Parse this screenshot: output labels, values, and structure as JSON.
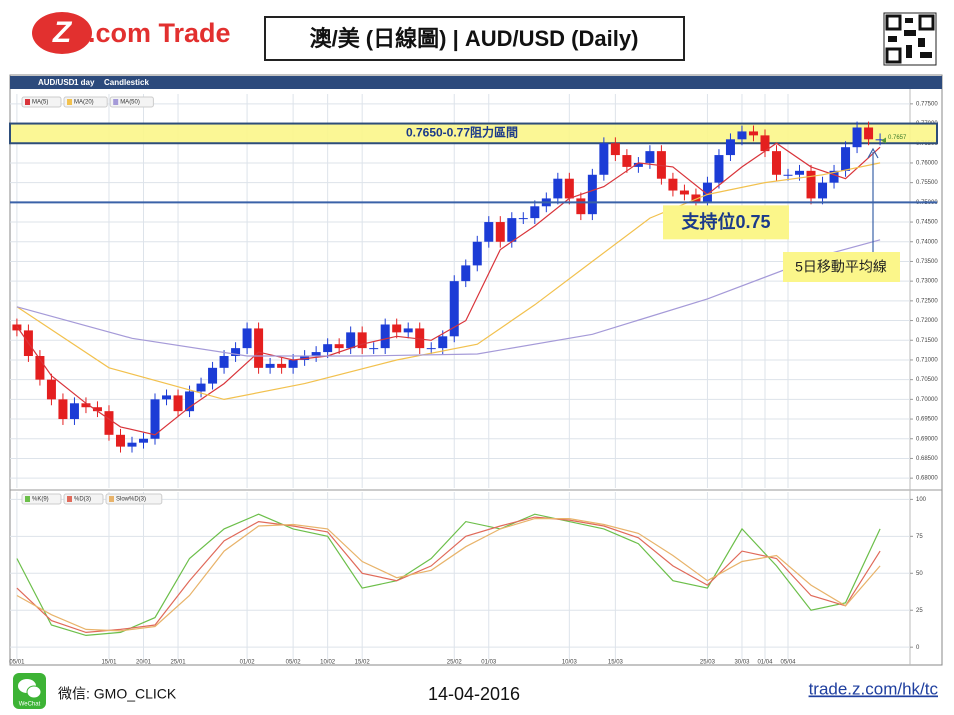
{
  "header": {
    "logo": {
      "mark": "Z",
      "text": ".com Trade"
    },
    "title": "澳/美 (日線圖) | AUD/USD  (Daily)"
  },
  "toolbar": [
    "AUD/USD",
    "1 day",
    "Candlestick"
  ],
  "chart_data": [
    {
      "type": "candlestick",
      "xlim": [
        -0.6,
        77.6
      ],
      "ylim": [
        0.6775,
        0.7775
      ],
      "grid": true,
      "up_color": "#1c3cd6",
      "down_color": "#e41f1f",
      "yticks": [
        {
          "value": 0.68,
          "label": "0.68000"
        },
        {
          "value": 0.685,
          "label": "0.68500"
        },
        {
          "value": 0.69,
          "label": "0.69000"
        },
        {
          "value": 0.695,
          "label": "0.69500"
        },
        {
          "value": 0.7,
          "label": "0.70000"
        },
        {
          "value": 0.705,
          "label": "0.70500"
        },
        {
          "value": 0.71,
          "label": "0.71000"
        },
        {
          "value": 0.715,
          "label": "0.71500"
        },
        {
          "value": 0.72,
          "label": "0.72000"
        },
        {
          "value": 0.725,
          "label": "0.72500"
        },
        {
          "value": 0.73,
          "label": "0.73000"
        },
        {
          "value": 0.735,
          "label": "0.73500"
        },
        {
          "value": 0.74,
          "label": "0.74000"
        },
        {
          "value": 0.745,
          "label": "0.74500"
        },
        {
          "value": 0.75,
          "label": "0.75000"
        },
        {
          "value": 0.755,
          "label": "0.75500"
        },
        {
          "value": 0.76,
          "label": "0.76000"
        },
        {
          "value": 0.765,
          "label": "0.76500"
        },
        {
          "value": 0.77,
          "label": "0.77000"
        },
        {
          "value": 0.775,
          "label": "0.77500"
        }
      ],
      "open": [
        0.719,
        0.7175,
        0.711,
        0.705,
        0.7,
        0.695,
        0.699,
        0.698,
        0.697,
        0.691,
        0.688,
        0.689,
        0.69,
        0.7,
        0.701,
        0.697,
        0.702,
        0.704,
        0.708,
        0.711,
        0.713,
        0.718,
        0.708,
        0.709,
        0.708,
        0.71,
        0.711,
        0.712,
        0.714,
        0.713,
        0.717,
        0.713,
        0.713,
        0.719,
        0.717,
        0.718,
        0.713,
        0.713,
        0.716,
        0.73,
        0.734,
        0.74,
        0.745,
        0.74,
        0.746,
        0.746,
        0.749,
        0.751,
        0.756,
        0.751,
        0.747,
        0.757,
        0.765,
        0.762,
        0.759,
        0.76,
        0.763,
        0.756,
        0.753,
        0.752,
        0.75,
        0.755,
        0.762,
        0.766,
        0.768,
        0.767,
        0.763,
        0.757,
        0.757,
        0.758,
        0.751,
        0.755,
        0.758,
        0.764,
        0.769,
        0.766
      ],
      "high": [
        0.7205,
        0.719,
        0.7125,
        0.7065,
        0.7015,
        0.7005,
        0.7005,
        0.6995,
        0.6985,
        0.6925,
        0.6905,
        0.6915,
        0.7015,
        0.7025,
        0.7025,
        0.7035,
        0.7055,
        0.7095,
        0.7125,
        0.7145,
        0.7195,
        0.7195,
        0.7105,
        0.7105,
        0.7115,
        0.7125,
        0.7135,
        0.7155,
        0.7155,
        0.7185,
        0.7185,
        0.7145,
        0.7205,
        0.7205,
        0.7195,
        0.7195,
        0.7145,
        0.7175,
        0.7315,
        0.7355,
        0.7415,
        0.7465,
        0.7465,
        0.7475,
        0.7475,
        0.7505,
        0.7525,
        0.7575,
        0.7575,
        0.7525,
        0.7585,
        0.7665,
        0.7665,
        0.7635,
        0.7615,
        0.7645,
        0.7645,
        0.7575,
        0.7545,
        0.7535,
        0.7565,
        0.7635,
        0.7675,
        0.7695,
        0.7695,
        0.7685,
        0.7645,
        0.7585,
        0.7595,
        0.7595,
        0.7565,
        0.7595,
        0.7655,
        0.7705,
        0.7705,
        0.7675
      ],
      "low": [
        0.716,
        0.7095,
        0.7035,
        0.6985,
        0.6935,
        0.6935,
        0.6965,
        0.6955,
        0.6895,
        0.6865,
        0.6865,
        0.6875,
        0.6885,
        0.6985,
        0.6955,
        0.6955,
        0.7005,
        0.7025,
        0.7065,
        0.7095,
        0.7115,
        0.7065,
        0.7065,
        0.7065,
        0.7065,
        0.7085,
        0.7095,
        0.7105,
        0.7115,
        0.7115,
        0.7115,
        0.7115,
        0.7115,
        0.7155,
        0.7155,
        0.7115,
        0.7115,
        0.7115,
        0.7145,
        0.7285,
        0.7325,
        0.7385,
        0.7385,
        0.7385,
        0.7445,
        0.7445,
        0.7475,
        0.7495,
        0.7495,
        0.7455,
        0.7455,
        0.7555,
        0.7605,
        0.7575,
        0.7575,
        0.7585,
        0.7545,
        0.7515,
        0.7505,
        0.7485,
        0.7485,
        0.7535,
        0.7605,
        0.7645,
        0.7655,
        0.7615,
        0.7555,
        0.7555,
        0.7555,
        0.7495,
        0.7495,
        0.7535,
        0.7565,
        0.7625,
        0.7645,
        0.7645
      ],
      "close": [
        0.7175,
        0.711,
        0.705,
        0.7,
        0.695,
        0.699,
        0.698,
        0.697,
        0.691,
        0.688,
        0.689,
        0.69,
        0.7,
        0.701,
        0.697,
        0.702,
        0.704,
        0.708,
        0.711,
        0.713,
        0.718,
        0.708,
        0.709,
        0.708,
        0.71,
        0.711,
        0.712,
        0.714,
        0.713,
        0.717,
        0.713,
        0.713,
        0.719,
        0.717,
        0.718,
        0.713,
        0.713,
        0.716,
        0.73,
        0.734,
        0.74,
        0.745,
        0.74,
        0.746,
        0.746,
        0.749,
        0.751,
        0.756,
        0.751,
        0.747,
        0.757,
        0.765,
        0.762,
        0.759,
        0.76,
        0.763,
        0.756,
        0.753,
        0.752,
        0.75,
        0.755,
        0.762,
        0.766,
        0.768,
        0.767,
        0.763,
        0.757,
        0.757,
        0.758,
        0.751,
        0.755,
        0.758,
        0.764,
        0.769,
        0.766,
        0.766
      ],
      "series": [
        {
          "name": "MA(5)",
          "color": "#d9343a",
          "x": [
            0,
            3,
            6,
            9,
            12,
            15,
            18,
            21,
            24,
            27,
            30,
            33,
            36,
            39,
            42,
            45,
            48,
            51,
            54,
            57,
            60,
            63,
            66,
            69,
            72,
            75
          ],
          "values": [
            0.7185,
            0.706,
            0.699,
            0.693,
            0.691,
            0.698,
            0.704,
            0.712,
            0.71,
            0.711,
            0.714,
            0.716,
            0.715,
            0.72,
            0.738,
            0.744,
            0.751,
            0.754,
            0.76,
            0.759,
            0.752,
            0.759,
            0.765,
            0.759,
            0.756,
            0.764
          ]
        },
        {
          "name": "MA(20)",
          "color": "#f2c14e",
          "x": [
            0,
            8,
            18,
            25,
            33,
            40,
            45,
            50,
            55,
            60,
            65,
            70,
            75
          ],
          "values": [
            0.7235,
            0.708,
            0.7,
            0.704,
            0.71,
            0.714,
            0.724,
            0.735,
            0.746,
            0.752,
            0.755,
            0.757,
            0.76
          ]
        },
        {
          "name": "MA(50)",
          "color": "#a59ad8",
          "x": [
            0,
            10,
            20,
            30,
            40,
            50,
            60,
            70,
            75
          ],
          "values": [
            0.7235,
            0.7155,
            0.711,
            0.711,
            0.7115,
            0.7165,
            0.7255,
            0.7365,
            0.7405
          ]
        }
      ],
      "resistance_zone": {
        "label": "0.7650-0.77阻力區間",
        "range": [
          0.765,
          0.77
        ]
      },
      "support": {
        "label": "支持位0.75",
        "value": 0.75
      },
      "ma_note": "5日移動平均線",
      "last_price": 0.7657
    },
    {
      "type": "line",
      "xlim": [
        -0.6,
        77.6
      ],
      "ylim": [
        -8,
        105
      ],
      "grid": true,
      "yticks": [
        0,
        25,
        50,
        75,
        100
      ],
      "xticks": [
        {
          "value": 0,
          "label": "05/01"
        },
        {
          "value": 8,
          "label": "15/01"
        },
        {
          "value": 11,
          "label": "20/01"
        },
        {
          "value": 14,
          "label": "25/01"
        },
        {
          "value": 20,
          "label": "01/02"
        },
        {
          "value": 24,
          "label": "05/02"
        },
        {
          "value": 27,
          "label": "10/02"
        },
        {
          "value": 30,
          "label": "15/02"
        },
        {
          "value": 38,
          "label": "25/02"
        },
        {
          "value": 41,
          "label": "01/03"
        },
        {
          "value": 48,
          "label": "10/03"
        },
        {
          "value": 52,
          "label": "15/03"
        },
        {
          "value": 60,
          "label": "25/03"
        },
        {
          "value": 63,
          "label": "30/03"
        },
        {
          "value": 65,
          "label": "01/04"
        },
        {
          "value": 67,
          "label": "05/04"
        }
      ],
      "series": [
        {
          "name": "%K(9)",
          "color": "#6cbf4a",
          "x": [
            0,
            3,
            6,
            9,
            12,
            15,
            18,
            21,
            24,
            27,
            30,
            33,
            36,
            39,
            42,
            45,
            48,
            51,
            54,
            57,
            60,
            63,
            66,
            69,
            72,
            75
          ],
          "values": [
            60,
            15,
            8,
            10,
            20,
            60,
            80,
            90,
            80,
            75,
            40,
            45,
            60,
            85,
            80,
            90,
            85,
            80,
            70,
            45,
            40,
            80,
            55,
            25,
            30,
            80
          ]
        },
        {
          "name": "%D(3)",
          "color": "#e06a5a",
          "x": [
            0,
            3,
            6,
            9,
            12,
            15,
            18,
            21,
            24,
            27,
            30,
            33,
            36,
            39,
            42,
            45,
            48,
            51,
            54,
            57,
            60,
            63,
            66,
            69,
            72,
            75
          ],
          "values": [
            40,
            18,
            10,
            12,
            15,
            45,
            72,
            85,
            82,
            78,
            50,
            45,
            55,
            75,
            82,
            88,
            86,
            82,
            74,
            55,
            42,
            65,
            60,
            35,
            28,
            65
          ]
        },
        {
          "name": "Slow%D(3)",
          "color": "#e8b36a",
          "x": [
            0,
            3,
            6,
            9,
            12,
            15,
            18,
            21,
            24,
            27,
            30,
            33,
            36,
            39,
            42,
            45,
            48,
            51,
            54,
            57,
            60,
            63,
            66,
            69,
            72,
            75
          ],
          "values": [
            35,
            22,
            12,
            11,
            14,
            35,
            65,
            82,
            83,
            80,
            58,
            47,
            52,
            68,
            80,
            87,
            87,
            83,
            77,
            62,
            45,
            58,
            62,
            42,
            28,
            55
          ]
        }
      ]
    }
  ],
  "footer": {
    "wechat_icon": "WeChat",
    "wechat": "微信: GMO_CLICK",
    "date": "14-04-2016",
    "url": "trade.z.com/hk/tc"
  }
}
